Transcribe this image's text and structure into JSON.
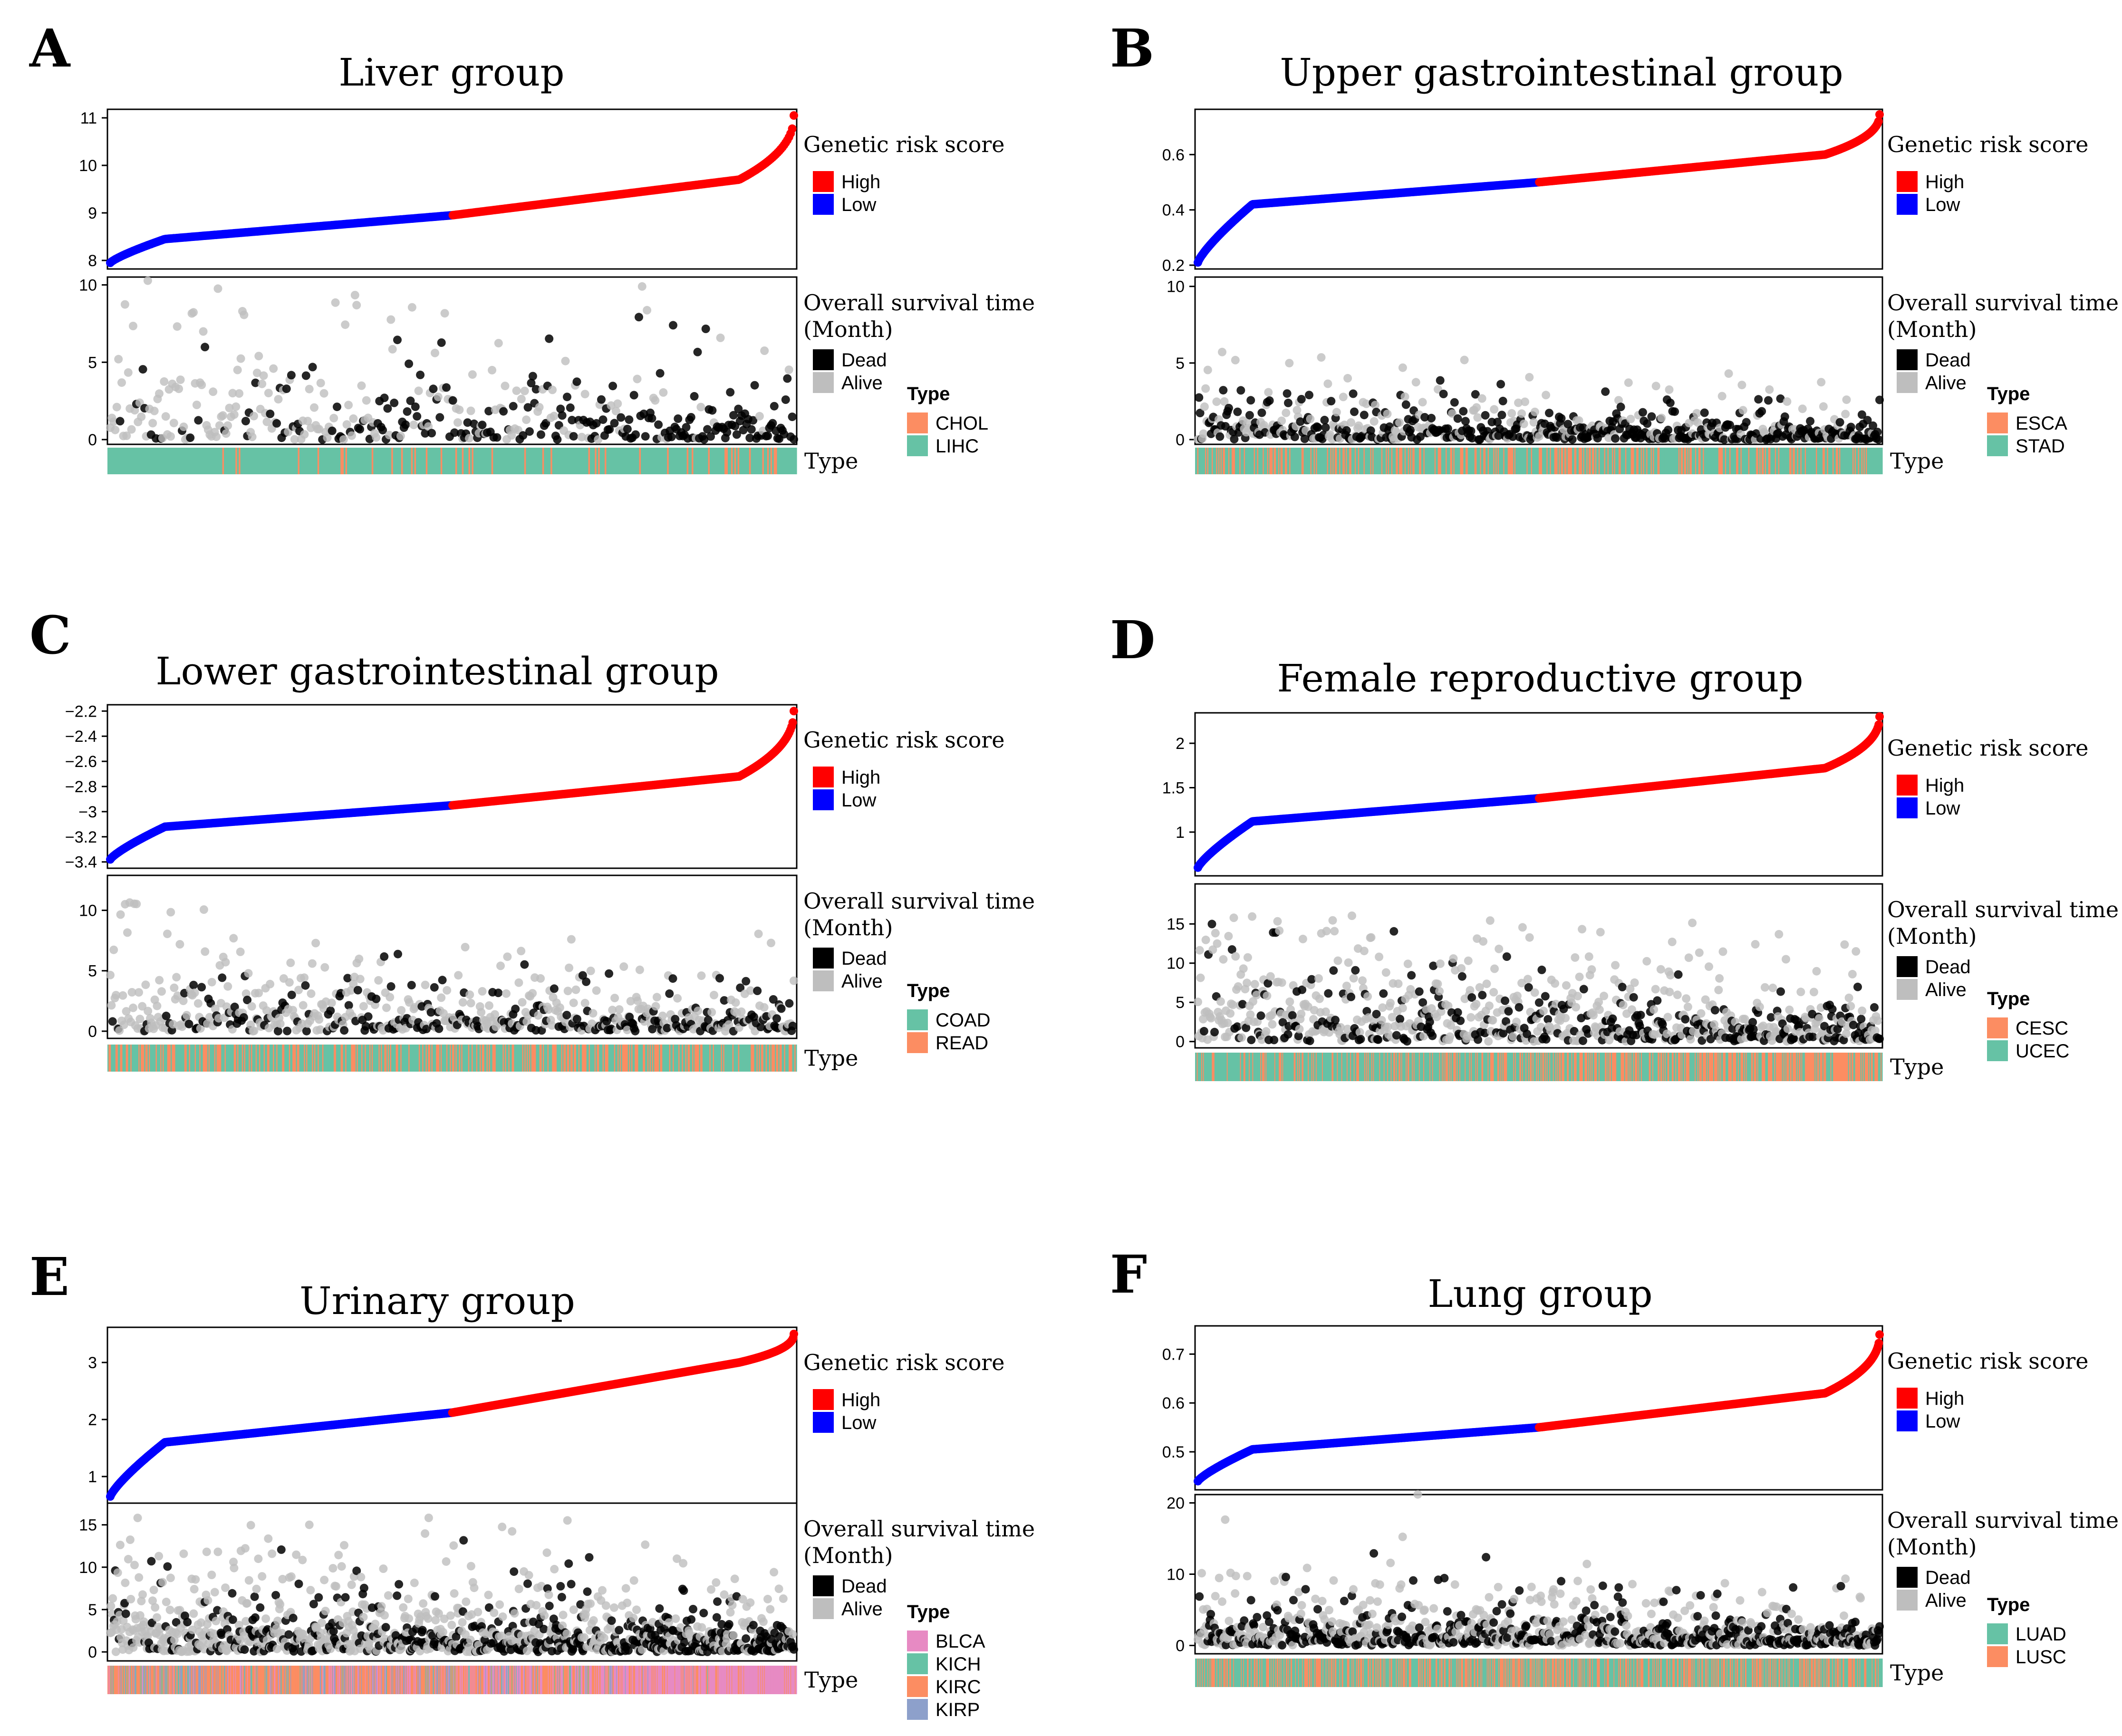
{
  "colors": {
    "high": "#ff0000",
    "low": "#0000ff",
    "dead": "#000000",
    "alive": "#bebebe",
    "type_green": "#66c2a5",
    "type_orange": "#fc8d62",
    "type_pink": "#e78ac3",
    "type_blue": "#8da0cb",
    "frame": "#000000"
  },
  "labels": {
    "risk_legend_title": "Genetic risk score",
    "high": "High",
    "low": "Low",
    "survival_legend_title_1": "Overall survival time",
    "survival_legend_title_2": "(Month)",
    "dead": "Dead",
    "alive": "Alive",
    "type_legend_title": "Type",
    "type_axis_label": "Type"
  },
  "chart_data": [
    {
      "panel": "A",
      "type": "scatter",
      "title": "Liver group",
      "risk": {
        "n": 420,
        "ylim": [
          7.9,
          11.1
        ],
        "ticks": [
          8,
          9,
          10,
          11
        ],
        "tick_labels": [
          "8",
          "9",
          "10",
          "11"
        ],
        "min": 7.95,
        "max": 11.05,
        "mid": 8.95,
        "p10": 8.45,
        "p90": 9.7,
        "steep": 0.92
      },
      "survival": {
        "ylim": [
          0,
          10.2
        ],
        "ticks": [
          0,
          5,
          10
        ],
        "tick_labels": [
          "0",
          "5",
          "10"
        ],
        "spread": 3.0,
        "dead_trend": [
          0.2,
          0.9
        ]
      },
      "types": [
        {
          "name": "CHOL",
          "color": "orange"
        },
        {
          "name": "LIHC",
          "color": "green"
        }
      ],
      "type_pattern": {
        "base": 1,
        "trend": [
          [
            0.05,
            0.2
          ],
          [
            0.05,
            0.2
          ]
        ]
      }
    },
    {
      "panel": "B",
      "type": "scatter",
      "title": "Upper gastrointestinal group",
      "risk": {
        "n": 620,
        "ylim": [
          0.2,
          0.75
        ],
        "ticks": [
          0.2,
          0.4,
          0.6
        ],
        "tick_labels": [
          "0.2",
          "0.4",
          "0.6"
        ],
        "min": 0.21,
        "max": 0.745,
        "mid": 0.5,
        "p10": 0.42,
        "p90": 0.6,
        "steep": 0.9
      },
      "survival": {
        "ylim": [
          0,
          10.3
        ],
        "ticks": [
          0,
          5,
          10
        ],
        "tick_labels": [
          "0",
          "5",
          "10"
        ],
        "spread": 1.4,
        "dead_trend": [
          0.55,
          0.75
        ]
      },
      "types": [
        {
          "name": "ESCA",
          "color": "orange"
        },
        {
          "name": "STAD",
          "color": "green"
        }
      ],
      "type_pattern": {
        "base": 1,
        "trend": [
          [
            0.35,
            0.3
          ],
          [
            0.35,
            0.3
          ]
        ]
      }
    },
    {
      "panel": "C",
      "type": "scatter",
      "title": "Lower gastrointestinal group",
      "risk": {
        "n": 600,
        "ylim": [
          -3.42,
          -2.18
        ],
        "ticks": [
          -3.4,
          -3.2,
          -3.0,
          -2.8,
          -2.6,
          -2.4,
          -2.2
        ],
        "tick_labels": [
          "−3.4",
          "−3.2",
          "−3",
          "−2.8",
          "−2.6",
          "−2.4",
          "−2.2"
        ],
        "min": -3.38,
        "max": -2.2,
        "mid": -2.95,
        "p10": -3.12,
        "p90": -2.72,
        "steep": 0.9
      },
      "survival": {
        "ylim": [
          -0.2,
          12.5
        ],
        "ticks": [
          0,
          5,
          10
        ],
        "tick_labels": [
          "0",
          "5",
          "10"
        ],
        "spread": 2.6,
        "dead_trend": [
          0.25,
          0.55
        ]
      },
      "types": [
        {
          "name": "COAD",
          "color": "green"
        },
        {
          "name": "READ",
          "color": "orange"
        }
      ],
      "type_pattern": {
        "base": 0,
        "trend": [
          [
            0.4,
            0.4
          ],
          [
            0.4,
            0.4
          ]
        ]
      }
    },
    {
      "panel": "D",
      "type": "scatter",
      "title": "Female reproductive group",
      "risk": {
        "n": 780,
        "ylim": [
          0.55,
          2.3
        ],
        "ticks": [
          1,
          1.5,
          2
        ],
        "tick_labels": [
          "1",
          "1.5",
          "2"
        ],
        "min": 0.6,
        "max": 2.3,
        "mid": 1.38,
        "p10": 1.12,
        "p90": 1.72,
        "steep": 0.9
      },
      "survival": {
        "ylim": [
          -0.2,
          19.5
        ],
        "ticks": [
          0,
          5,
          10,
          15
        ],
        "tick_labels": [
          "0",
          "5",
          "10",
          "15"
        ],
        "spread": 5.0,
        "dead_trend": [
          0.25,
          0.55
        ]
      },
      "types": [
        {
          "name": "CESC",
          "color": "orange"
        },
        {
          "name": "UCEC",
          "color": "green"
        }
      ],
      "type_pattern": {
        "base": 1,
        "trend": [
          [
            0.1,
            0.25
          ],
          [
            0.1,
            0.6
          ]
        ]
      }
    },
    {
      "panel": "E",
      "type": "scatter",
      "title": "Urinary group",
      "risk": {
        "n": 1100,
        "ylim": [
          0.6,
          3.55
        ],
        "ticks": [
          1,
          2,
          3
        ],
        "tick_labels": [
          "1",
          "2",
          "3"
        ],
        "min": 0.65,
        "max": 3.5,
        "mid": 2.12,
        "p10": 1.6,
        "p90": 3.0,
        "steep": 0.9
      },
      "survival": {
        "ylim": [
          -0.5,
          17
        ],
        "ticks": [
          0,
          5,
          10,
          15
        ],
        "tick_labels": [
          "0",
          "5",
          "10",
          "15"
        ],
        "spread": 4.0,
        "dead_trend": [
          0.2,
          0.65
        ]
      },
      "types": [
        {
          "name": "BLCA",
          "color": "pink"
        },
        {
          "name": "KICH",
          "color": "green"
        },
        {
          "name": "KIRC",
          "color": "orange"
        },
        {
          "name": "KIRP",
          "color": "blue"
        }
      ],
      "type_pattern": {
        "base": 2,
        "trend": []
      }
    },
    {
      "panel": "F",
      "type": "scatter",
      "title": "Lung group",
      "risk": {
        "n": 900,
        "ylim": [
          0.43,
          0.75
        ],
        "ticks": [
          0.5,
          0.6,
          0.7
        ],
        "tick_labels": [
          "0.5",
          "0.6",
          "0.7"
        ],
        "min": 0.44,
        "max": 0.74,
        "mid": 0.55,
        "p10": 0.505,
        "p90": 0.62,
        "steep": 0.9
      },
      "survival": {
        "ylim": [
          -0.5,
          20.5
        ],
        "ticks": [
          0,
          10,
          20
        ],
        "tick_labels": [
          "0",
          "10",
          "20"
        ],
        "spread": 3.5,
        "dead_trend": [
          0.45,
          0.6
        ]
      },
      "types": [
        {
          "name": "LUAD",
          "color": "green"
        },
        {
          "name": "LUSC",
          "color": "orange"
        }
      ],
      "type_pattern": {
        "base": 0,
        "trend": [
          [
            0.45,
            0.45
          ],
          [
            0.45,
            0.45
          ]
        ]
      }
    }
  ]
}
